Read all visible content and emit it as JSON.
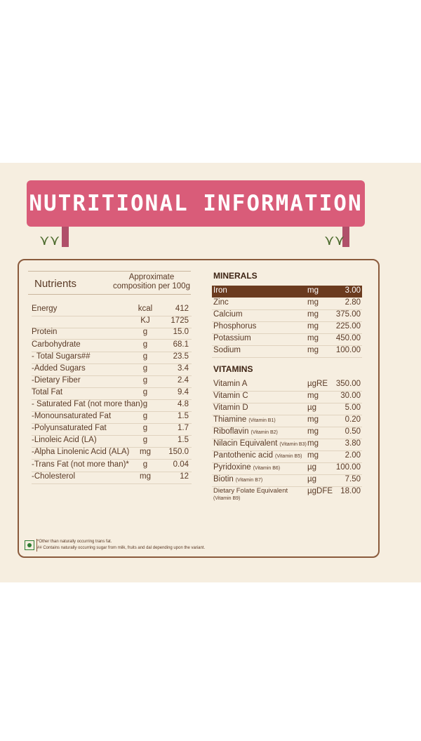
{
  "title": "NUTRITIONAL INFORMATION",
  "left": {
    "header_nutrients": "Nutrients",
    "header_approx": "Approximate",
    "header_comp": "composition per 100g",
    "rows": [
      {
        "name": "Energy",
        "unit": "kcal",
        "value": "412"
      },
      {
        "name": "",
        "unit": "KJ",
        "value": "1725"
      },
      {
        "name": "Protein",
        "unit": "g",
        "value": "15.0"
      },
      {
        "name": "Carbohydrate",
        "unit": "g",
        "value": "68.1"
      },
      {
        "name": "- Total Sugars##",
        "unit": "g",
        "value": "23.5"
      },
      {
        "name": "-Added Sugars",
        "unit": "g",
        "value": "3.4"
      },
      {
        "name": "-Dietary Fiber",
        "unit": "g",
        "value": "2.4"
      },
      {
        "name": "Total Fat",
        "unit": "g",
        "value": "9.4"
      },
      {
        "name": "- Saturated Fat (not more than)",
        "unit": "g",
        "value": "4.8"
      },
      {
        "name": "-Monounsaturated Fat",
        "unit": "g",
        "value": "1.5"
      },
      {
        "name": "-Polyunsaturated Fat",
        "unit": "g",
        "value": "1.7"
      },
      {
        "name": "-Linoleic Acid (LA)",
        "unit": "g",
        "value": "1.5"
      },
      {
        "name": "-Alpha Linolenic Acid (ALA)",
        "unit": "mg",
        "value": "150.0"
      },
      {
        "name": "-Trans Fat (not more than)*",
        "unit": "g",
        "value": "0.04"
      },
      {
        "name": "-Cholesterol",
        "unit": "mg",
        "value": "12"
      }
    ]
  },
  "minerals": {
    "title": "MINERALS",
    "rows": [
      {
        "name": "Iron",
        "unit": "mg",
        "value": "3.00"
      },
      {
        "name": "Zinc",
        "unit": "mg",
        "value": "2.80"
      },
      {
        "name": "Calcium",
        "unit": "mg",
        "value": "375.00"
      },
      {
        "name": "Phosphorus",
        "unit": "mg",
        "value": "225.00"
      },
      {
        "name": "Potassium",
        "unit": "mg",
        "value": "450.00"
      },
      {
        "name": "Sodium",
        "unit": "mg",
        "value": "100.00"
      }
    ]
  },
  "vitamins": {
    "title": "VITAMINS",
    "rows": [
      {
        "name": "Vitamin A",
        "sub": "",
        "unit": "µgRE",
        "value": "350.00"
      },
      {
        "name": "Vitamin C",
        "sub": "",
        "unit": "mg",
        "value": "30.00"
      },
      {
        "name": "Vitamin D",
        "sub": "",
        "unit": "µg",
        "value": "5.00"
      },
      {
        "name": "Thiamine",
        "sub": "(Vitamin B1)",
        "unit": "mg",
        "value": "0.20"
      },
      {
        "name": "Riboflavin",
        "sub": "(Vitamin B2)",
        "unit": "mg",
        "value": "0.50"
      },
      {
        "name": "Nilacin Equivalent",
        "sub": "(Vitamin B3)",
        "unit": "mg",
        "value": "3.80"
      },
      {
        "name": "Pantothenic acid",
        "sub": "(Vitamin B5)",
        "unit": "mg",
        "value": "2.00"
      },
      {
        "name": "Pyridoxine",
        "sub": "(Vitamin B6)",
        "unit": "µg",
        "value": "100.00"
      },
      {
        "name": "Biotin",
        "sub": "(Vitamin B7)",
        "unit": "µg",
        "value": "7.50"
      },
      {
        "name": "Dietary Folate Equivalent",
        "sub": "(Vitamin B9)",
        "unit": "µgDFE",
        "value": "18.00"
      }
    ]
  },
  "footnotes": [
    "*Other than naturally occurring trans fat.",
    "## Contains naturally occurring sugar from milk, fruits and dal depending upon the variant."
  ],
  "colors": {
    "banner": "#d95c79",
    "highlight": "#6b3b1f",
    "panel": "#f6eee0",
    "border": "#8a5a3c"
  }
}
